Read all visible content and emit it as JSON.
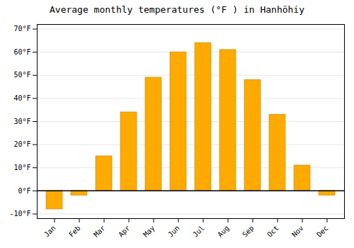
{
  "chart_data": {
    "type": "bar",
    "title": "Average monthly temperatures (°F ) in Hanhöhiy",
    "categories": [
      "Jan",
      "Feb",
      "Mar",
      "Apr",
      "May",
      "Jun",
      "Jul",
      "Aug",
      "Sep",
      "Oct",
      "Nov",
      "Dec"
    ],
    "values": [
      -8,
      -2,
      15,
      34,
      49,
      60,
      64,
      61,
      48,
      33,
      11,
      -2
    ],
    "color": "#FFAA00",
    "ylim": [
      -12,
      72
    ],
    "yticks": [
      {
        "value": -10,
        "label": "-10°F"
      },
      {
        "value": 0,
        "label": "0°F"
      },
      {
        "value": 10,
        "label": "10°F"
      },
      {
        "value": 20,
        "label": "20°F"
      },
      {
        "value": 30,
        "label": "30°F"
      },
      {
        "value": 40,
        "label": "40°F"
      },
      {
        "value": 50,
        "label": "50°F"
      },
      {
        "value": 60,
        "label": "60°F"
      },
      {
        "value": 70,
        "label": "70°F"
      }
    ],
    "grid": true
  }
}
